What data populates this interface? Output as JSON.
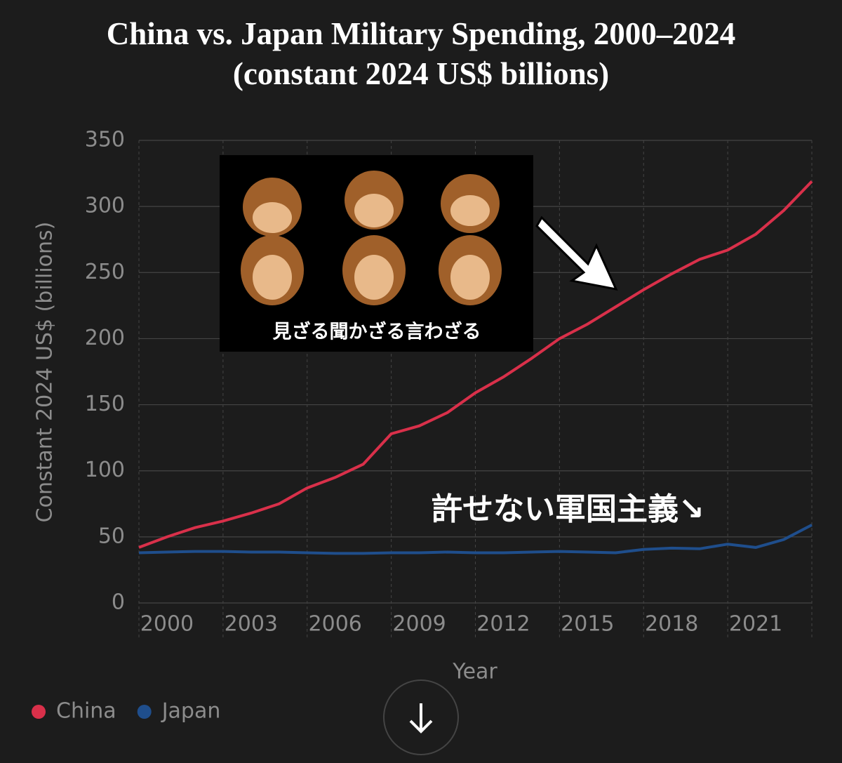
{
  "chart_data": {
    "type": "line",
    "title": "China vs. Japan Military Spending, 2000–2024 (constant 2024 US$ billions)",
    "x_label": "Year",
    "y_label": "Constant 2024 US$ (billions)",
    "x": [
      2000,
      2001,
      2002,
      2003,
      2004,
      2005,
      2006,
      2007,
      2008,
      2009,
      2010,
      2011,
      2012,
      2013,
      2014,
      2015,
      2016,
      2017,
      2018,
      2019,
      2020,
      2021,
      2022,
      2023,
      2024
    ],
    "series": [
      {
        "name": "China",
        "color": "#d9304a",
        "values": [
          42,
          50,
          57,
          62,
          68,
          75,
          87,
          95,
          105,
          128,
          134,
          144,
          159,
          171,
          185,
          200,
          211,
          224,
          237,
          249,
          260,
          267,
          279,
          297,
          319
        ]
      },
      {
        "name": "Japan",
        "color": "#1f4e8c",
        "values": [
          38,
          38.5,
          39,
          39,
          38.5,
          38.5,
          38,
          37.5,
          37.5,
          38,
          38,
          38.5,
          38,
          38,
          38.5,
          39,
          38.5,
          38,
          40.5,
          41.5,
          41,
          44.5,
          42,
          48,
          59
        ]
      }
    ],
    "xlim": [
      2000,
      2024
    ],
    "xticks": [
      2000,
      2003,
      2006,
      2009,
      2012,
      2015,
      2018,
      2021
    ],
    "ylim": [
      0,
      350
    ],
    "yticks": [
      0,
      50,
      100,
      150,
      200,
      250,
      300,
      350
    ],
    "grid": true,
    "legend": "bottom-left",
    "annotations": {
      "image_caption": "見ざる聞かざる言わざる",
      "overlay_text": "許せない軍国主義↘"
    }
  }
}
